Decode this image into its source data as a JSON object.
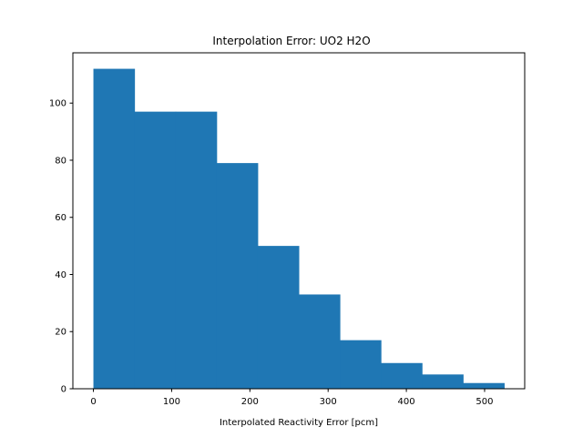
{
  "chart_data": {
    "type": "bar",
    "title": "Interpolation Error: UO2 H2O",
    "xlabel": "Interpolated Reactivity Error [pcm]",
    "ylabel": "",
    "bin_edges": [
      0,
      52.5,
      105,
      157.5,
      210,
      262.5,
      315,
      367.5,
      420,
      472.5,
      525
    ],
    "values": [
      112,
      97,
      97,
      79,
      50,
      33,
      17,
      9,
      5,
      2
    ],
    "xlim": [
      -26.25,
      551.25
    ],
    "ylim": [
      0,
      117.6
    ],
    "xticks": [
      0,
      100,
      200,
      300,
      400,
      500
    ],
    "yticks": [
      0,
      20,
      40,
      60,
      80,
      100
    ],
    "bar_color": "#1f77b4",
    "grid": false,
    "legend": "none"
  }
}
